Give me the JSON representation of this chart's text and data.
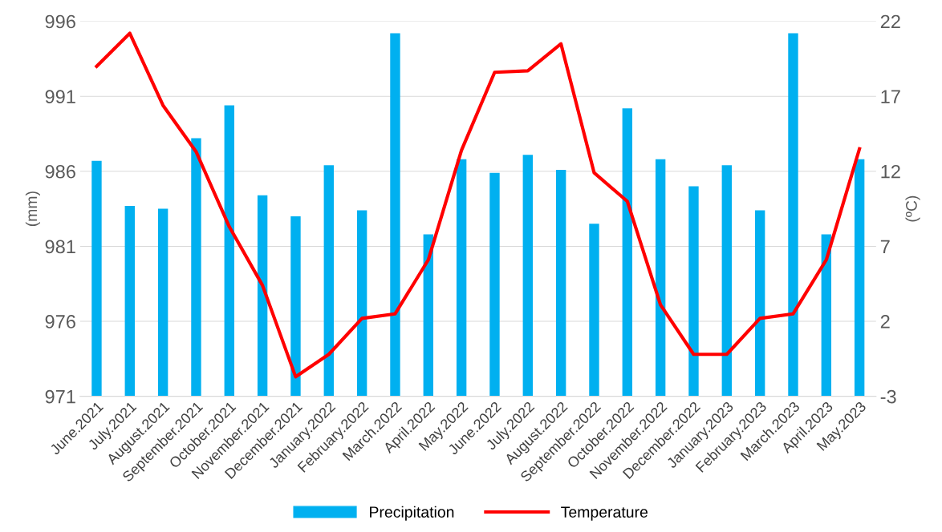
{
  "chart_data": {
    "type": "bar",
    "ylabel": "(mm)",
    "y2label": "(ºC)",
    "categories": [
      "June.2021",
      "July.2021",
      "August.2021",
      "September.2021",
      "October.2021",
      "November.2021",
      "December.2021",
      "January.2022",
      "February.2022",
      "March.2022",
      "April.2022",
      "May.2022",
      "June.2022",
      "July.2022",
      "August.2022",
      "September.2022",
      "October.2022",
      "November.2022",
      "December.2022",
      "January.2023",
      "February.2023",
      "March.2023",
      "April.2023",
      "May.2023"
    ],
    "series": [
      {
        "name": "Precipitation",
        "color": "#00b0f0",
        "values": [
          986.7,
          983.7,
          983.5,
          988.2,
          990.4,
          984.4,
          983.0,
          986.4,
          983.4,
          995.2,
          981.8,
          986.8,
          985.9,
          987.1,
          986.1,
          982.5,
          990.2,
          986.8,
          985.0,
          986.4,
          983.4,
          995.2,
          981.8,
          986.8
        ]
      },
      {
        "name": "Temperature",
        "type": "line",
        "axis": "y2",
        "color": "#ff0000",
        "values": [
          19.0,
          21.2,
          16.4,
          13.3,
          8.3,
          4.4,
          -1.7,
          -0.2,
          2.2,
          2.5,
          6.1,
          13.4,
          18.6,
          18.7,
          20.5,
          11.9,
          10.0,
          3.1,
          -0.2,
          -0.2,
          2.2,
          2.5,
          6.1,
          13.5
        ]
      }
    ],
    "ylim": [
      971,
      996
    ],
    "yticks": [
      971,
      976,
      981,
      986,
      991,
      996
    ],
    "y2lim": [
      -3,
      22
    ],
    "y2ticks": [
      -3,
      2,
      7,
      12,
      17,
      22
    ],
    "grid": "y",
    "legend": "bottom"
  }
}
